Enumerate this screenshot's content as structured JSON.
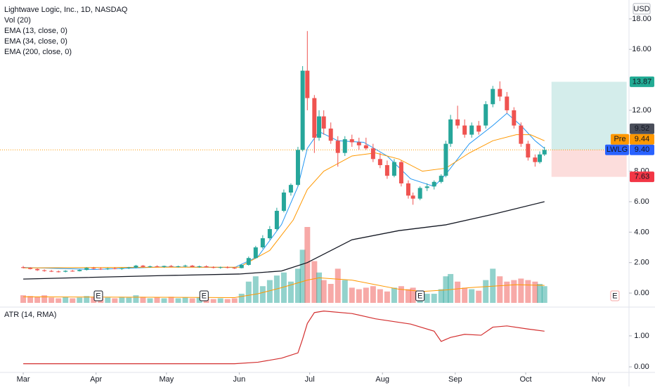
{
  "chart_data": {
    "type": "candlestick",
    "title": "Lightwave Logic, Inc., 1D, NASDAQ",
    "currency": "USD",
    "x": [
      0,
      3,
      6,
      9,
      12,
      15,
      18,
      21,
      24,
      27,
      30,
      33,
      36,
      39,
      42,
      45,
      48,
      51,
      54,
      57,
      60,
      63,
      66,
      69,
      72,
      75,
      78,
      81,
      84,
      87,
      90,
      93,
      96,
      99,
      102,
      105,
      108,
      111,
      114,
      117,
      119,
      121,
      124,
      126,
      128,
      131,
      134,
      137,
      140,
      143,
      146,
      149,
      152,
      155,
      158,
      161,
      164,
      166,
      169,
      172,
      175,
      178,
      180,
      182,
      185,
      188,
      191,
      194,
      197,
      200,
      203,
      206,
      209,
      212,
      215,
      218,
      220,
      222
    ],
    "open": [
      1.7,
      1.65,
      1.58,
      1.5,
      1.45,
      1.42,
      1.4,
      1.46,
      1.44,
      1.52,
      1.65,
      1.6,
      1.58,
      1.62,
      1.58,
      1.64,
      1.68,
      1.8,
      1.72,
      1.76,
      1.72,
      1.78,
      1.74,
      1.76,
      1.8,
      1.72,
      1.76,
      1.7,
      1.66,
      1.7,
      1.66,
      1.64,
      1.85,
      2.3,
      3.0,
      3.6,
      4.2,
      5.4,
      6.6,
      7.1,
      9.4,
      14.6,
      12.8,
      10.2,
      11.6,
      10.8,
      10.0,
      9.2,
      10.1,
      9.9,
      9.7,
      9.5,
      8.8,
      8.4,
      7.7,
      8.6,
      7.2,
      6.4,
      6.2,
      6.9,
      7.0,
      7.3,
      7.7,
      9.8,
      11.4,
      11.0,
      10.4,
      11.0,
      11.0,
      12.4,
      13.4,
      12.9,
      12.0,
      11.0,
      9.8,
      8.9,
      8.6,
      9.1
    ],
    "high": [
      1.78,
      1.7,
      1.62,
      1.56,
      1.52,
      1.48,
      1.5,
      1.52,
      1.55,
      1.7,
      1.72,
      1.68,
      1.66,
      1.7,
      1.66,
      1.72,
      1.85,
      1.84,
      1.8,
      1.82,
      1.8,
      1.84,
      1.8,
      1.86,
      1.84,
      1.8,
      1.82,
      1.76,
      1.74,
      1.76,
      1.72,
      1.9,
      2.4,
      3.1,
      3.8,
      4.4,
      5.6,
      6.8,
      7.2,
      9.6,
      14.9,
      17.2,
      13.0,
      12.0,
      12.0,
      11.2,
      10.3,
      10.3,
      10.4,
      10.2,
      10.2,
      9.8,
      9.2,
      8.7,
      8.8,
      8.7,
      7.4,
      6.6,
      7.0,
      7.2,
      7.4,
      7.8,
      10.0,
      11.7,
      12.3,
      11.4,
      11.2,
      11.3,
      12.6,
      13.6,
      13.9,
      13.2,
      12.2,
      11.2,
      10.0,
      9.1,
      9.3,
      9.6
    ],
    "low": [
      1.62,
      1.55,
      1.45,
      1.4,
      1.38,
      1.35,
      1.36,
      1.4,
      1.42,
      1.48,
      1.55,
      1.52,
      1.52,
      1.56,
      1.52,
      1.58,
      1.62,
      1.68,
      1.66,
      1.7,
      1.66,
      1.7,
      1.68,
      1.7,
      1.7,
      1.66,
      1.68,
      1.62,
      1.6,
      1.62,
      1.58,
      1.62,
      1.8,
      2.25,
      2.9,
      3.5,
      4.1,
      5.3,
      6.4,
      7.0,
      9.3,
      12.0,
      9.2,
      10.0,
      10.4,
      9.8,
      8.3,
      9.0,
      9.6,
      9.4,
      9.4,
      8.6,
      8.2,
      7.5,
      7.6,
      7.0,
      6.2,
      5.8,
      6.1,
      6.7,
      6.8,
      7.2,
      7.6,
      9.6,
      10.8,
      10.2,
      10.2,
      10.4,
      10.8,
      12.2,
      12.6,
      11.8,
      10.8,
      9.6,
      8.7,
      8.3,
      8.5,
      9.0
    ],
    "close": [
      1.65,
      1.58,
      1.5,
      1.45,
      1.42,
      1.4,
      1.46,
      1.44,
      1.52,
      1.65,
      1.6,
      1.58,
      1.62,
      1.58,
      1.64,
      1.68,
      1.8,
      1.72,
      1.76,
      1.72,
      1.78,
      1.74,
      1.76,
      1.8,
      1.72,
      1.76,
      1.7,
      1.66,
      1.7,
      1.66,
      1.64,
      1.85,
      2.3,
      3.0,
      3.6,
      4.2,
      5.4,
      6.6,
      7.1,
      9.4,
      14.6,
      12.8,
      10.2,
      11.6,
      10.8,
      10.0,
      9.2,
      10.1,
      9.9,
      9.7,
      9.5,
      8.8,
      8.4,
      7.7,
      8.6,
      7.2,
      6.4,
      6.2,
      6.9,
      7.0,
      7.3,
      7.7,
      9.8,
      11.4,
      11.0,
      10.4,
      11.0,
      10.6,
      12.4,
      13.4,
      12.9,
      12.0,
      11.0,
      9.8,
      8.9,
      8.6,
      9.1,
      9.4
    ],
    "colors": {
      "up": "#26a69a",
      "down": "#ef5350"
    },
    "xlim": [
      -9.9,
      258
    ],
    "xticks": [
      {
        "value": 0,
        "label": "Mar"
      },
      {
        "value": 31,
        "label": "Apr"
      },
      {
        "value": 61,
        "label": "May"
      },
      {
        "value": 92,
        "label": "Jun"
      },
      {
        "value": 122,
        "label": "Jul"
      },
      {
        "value": 153,
        "label": "Aug"
      },
      {
        "value": 184,
        "label": "Sep"
      },
      {
        "value": 214,
        "label": "Oct"
      },
      {
        "value": 245,
        "label": "Nov"
      }
    ],
    "ylim": [
      -0.92,
      19.24
    ],
    "yticks": [
      {
        "value": 0,
        "label": "0.00"
      },
      {
        "value": 2,
        "label": "2.00"
      },
      {
        "value": 4,
        "label": "4.00"
      },
      {
        "value": 6,
        "label": "6.00"
      },
      {
        "value": 8,
        "label": "8.00"
      },
      {
        "value": 12,
        "label": "12.00"
      },
      {
        "value": 16,
        "label": "16.00"
      },
      {
        "value": 18,
        "label": "18.00"
      }
    ],
    "volume": {
      "name": "Vol (20)",
      "ylim": [
        0,
        100
      ],
      "values": [
        10,
        9,
        8,
        10,
        7,
        6,
        8,
        6,
        7,
        9,
        8,
        6,
        7,
        6,
        8,
        7,
        10,
        8,
        6,
        7,
        6,
        8,
        6,
        7,
        6,
        7,
        6,
        5,
        6,
        5,
        6,
        12,
        28,
        35,
        22,
        30,
        36,
        40,
        28,
        45,
        70,
        100,
        55,
        40,
        30,
        25,
        45,
        30,
        20,
        18,
        20,
        22,
        18,
        15,
        20,
        22,
        18,
        20,
        16,
        12,
        12,
        18,
        35,
        38,
        28,
        20,
        18,
        16,
        30,
        45,
        35,
        28,
        30,
        32,
        30,
        28,
        25,
        22
      ],
      "ma": {
        "color": "#ff9800",
        "x": [
          0,
          90,
          100,
          110,
          121,
          126,
          140,
          150,
          160,
          170,
          180,
          190,
          200,
          210,
          222
        ],
        "values": [
          8,
          7,
          12,
          20,
          30,
          33,
          30,
          24,
          18,
          15,
          17,
          20,
          22,
          24,
          23
        ]
      }
    },
    "series": [
      {
        "name": "EMA (13, close, 0)",
        "color": "#2196f3",
        "x": [
          0,
          30,
          60,
          90,
          100,
          110,
          117,
          121,
          126,
          134,
          145,
          155,
          165,
          175,
          180,
          190,
          200,
          206,
          212,
          218,
          222
        ],
        "values": [
          1.68,
          1.55,
          1.72,
          1.68,
          2.4,
          4.5,
          7.0,
          9.5,
          10.6,
          10.0,
          9.9,
          9.0,
          7.5,
          7.0,
          7.8,
          9.8,
          11.0,
          11.8,
          11.0,
          10.0,
          9.5
        ]
      },
      {
        "name": "EMA (34, close, 0)",
        "color": "#ff9800",
        "x": [
          0,
          60,
          92,
          105,
          115,
          121,
          128,
          140,
          150,
          160,
          170,
          180,
          190,
          200,
          210,
          216,
          222
        ],
        "values": [
          1.65,
          1.7,
          1.7,
          2.8,
          4.8,
          6.8,
          8.0,
          9.0,
          9.2,
          8.8,
          8.0,
          8.2,
          9.2,
          10.0,
          10.4,
          10.4,
          10.0
        ]
      },
      {
        "name": "EMA (200, close, 0)",
        "color": "#131722",
        "x": [
          0,
          60,
          92,
          110,
          121,
          140,
          160,
          180,
          200,
          222
        ],
        "values": [
          0.92,
          1.15,
          1.25,
          1.45,
          2.0,
          3.5,
          4.1,
          4.48,
          5.17,
          6.0
        ]
      }
    ],
    "last_price": {
      "name": "LWLG",
      "value": 9.4,
      "label": "9.40",
      "color": "#2962ff"
    },
    "premarket": {
      "name": "Pre",
      "value": 9.44,
      "color": "#ff9800"
    },
    "price_tags": [
      {
        "value": 9.52,
        "color": "#4a4e5a"
      }
    ],
    "position": {
      "x": [
        225,
        257
      ],
      "target": 13.87,
      "stop": 7.63
    },
    "earnings": {
      "label": "E",
      "x": [
        32,
        77,
        169,
        252
      ]
    },
    "atr": {
      "name": "ATR (14, RMA)",
      "color": "#d32f2f",
      "ylim": [
        -0.18,
        1.86
      ],
      "yticks": [
        {
          "value": 0,
          "label": "0.00"
        },
        {
          "value": 1,
          "label": "1.00"
        }
      ],
      "x": [
        0,
        90,
        100,
        110,
        117,
        119,
        121,
        124,
        128,
        140,
        150,
        165,
        175,
        178,
        182,
        188,
        195,
        200,
        206,
        215,
        222
      ],
      "values": [
        0.1,
        0.1,
        0.15,
        0.28,
        0.45,
        0.9,
        1.4,
        1.75,
        1.8,
        1.72,
        1.55,
        1.38,
        1.15,
        0.82,
        0.95,
        1.05,
        1.02,
        1.28,
        1.32,
        1.22,
        1.15
      ]
    }
  }
}
